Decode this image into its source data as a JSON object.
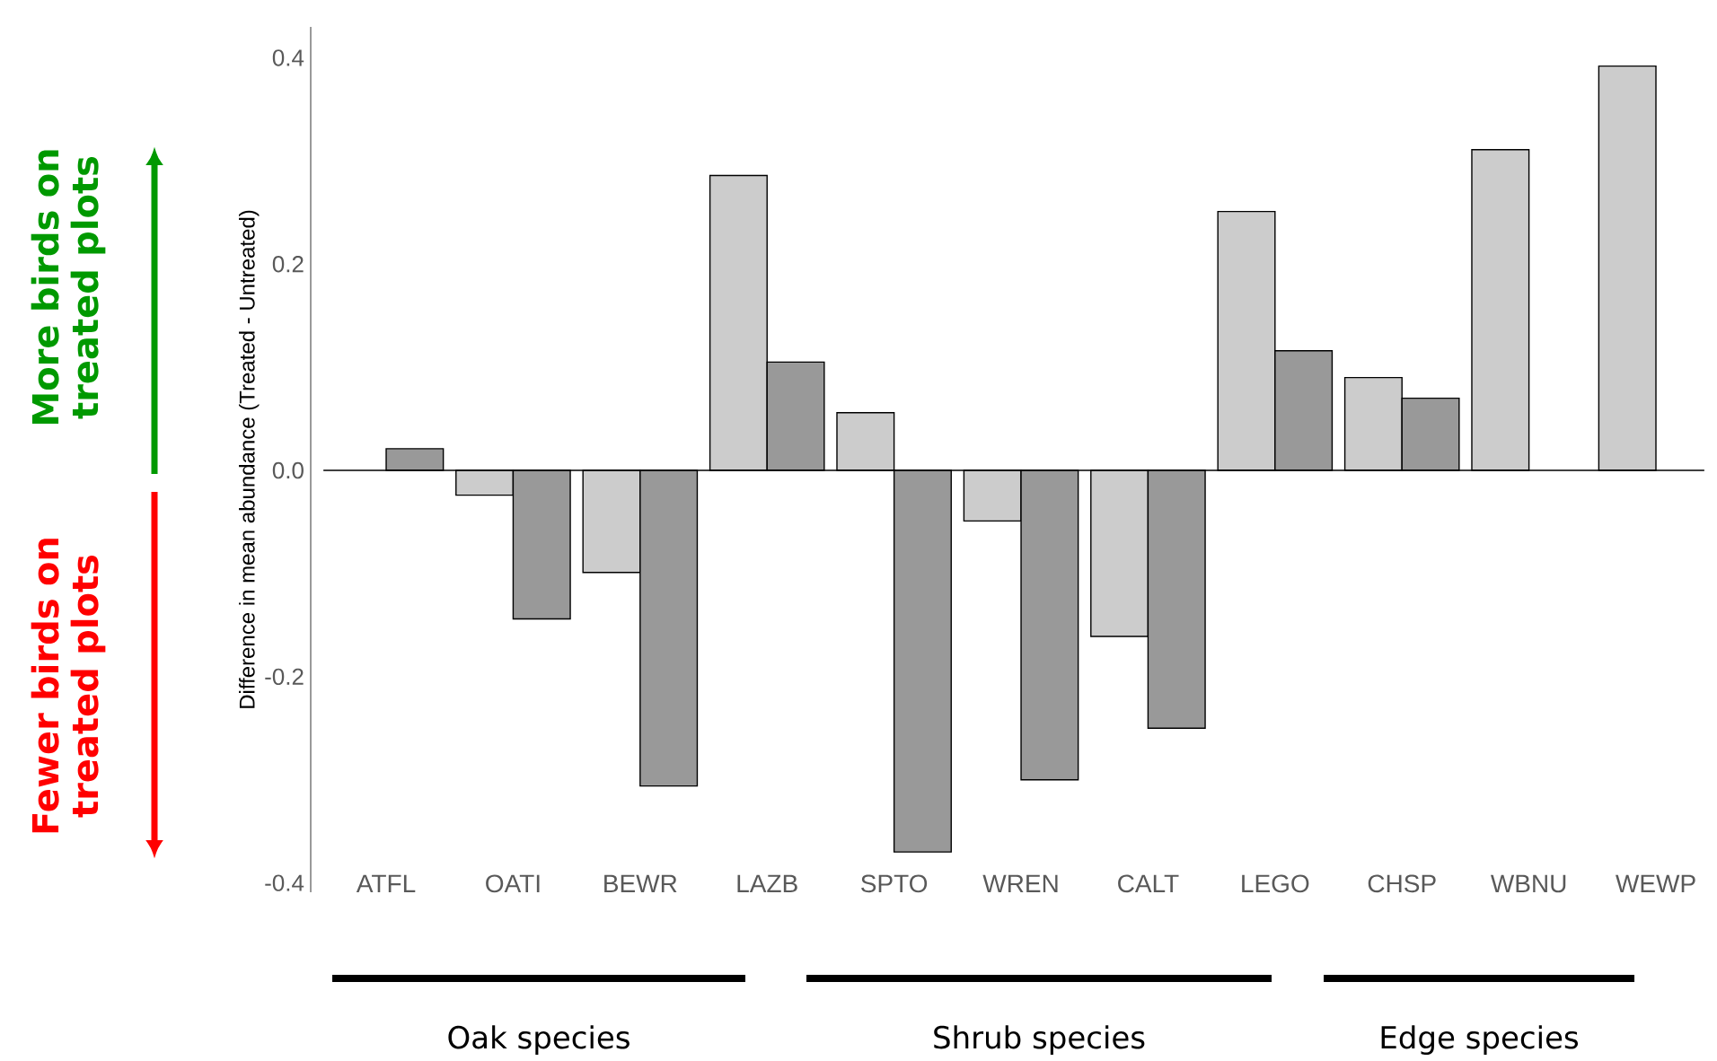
{
  "chart_data": {
    "type": "bar",
    "ylabel": "Difference in mean abundance (Treated - Untreated)",
    "categories": [
      "ATFL",
      "OATI",
      "BEWR",
      "LAZB",
      "SPTO",
      "WREN",
      "CALT",
      "LEGO",
      "CHSP",
      "WBNU",
      "WEWP"
    ],
    "series": [
      {
        "color": "#cccccc",
        "values": [
          0,
          -0.024,
          -0.099,
          0.286,
          0.056,
          -0.049,
          -0.161,
          0.251,
          0.09,
          0.311,
          0.392
        ]
      },
      {
        "color": "#999999",
        "values": [
          0.021,
          -0.144,
          -0.306,
          0.105,
          -0.37,
          -0.3,
          -0.25,
          0.116,
          0.07,
          0,
          0
        ]
      }
    ],
    "ylim": [
      -0.409,
      0.43
    ],
    "yticks": [
      {
        "value": -0.4,
        "label": "-0.4"
      },
      -0.2,
      {
        "value": 0,
        "label": "0.0"
      },
      0.2,
      0.4
    ],
    "ref_lines": [
      {
        "axis": "y",
        "value": 0
      }
    ],
    "annotations": [
      "Oak species",
      "Shrub species",
      "Edge species",
      "More birds on treated plots",
      "Fewer birds on treated plots"
    ]
  }
}
